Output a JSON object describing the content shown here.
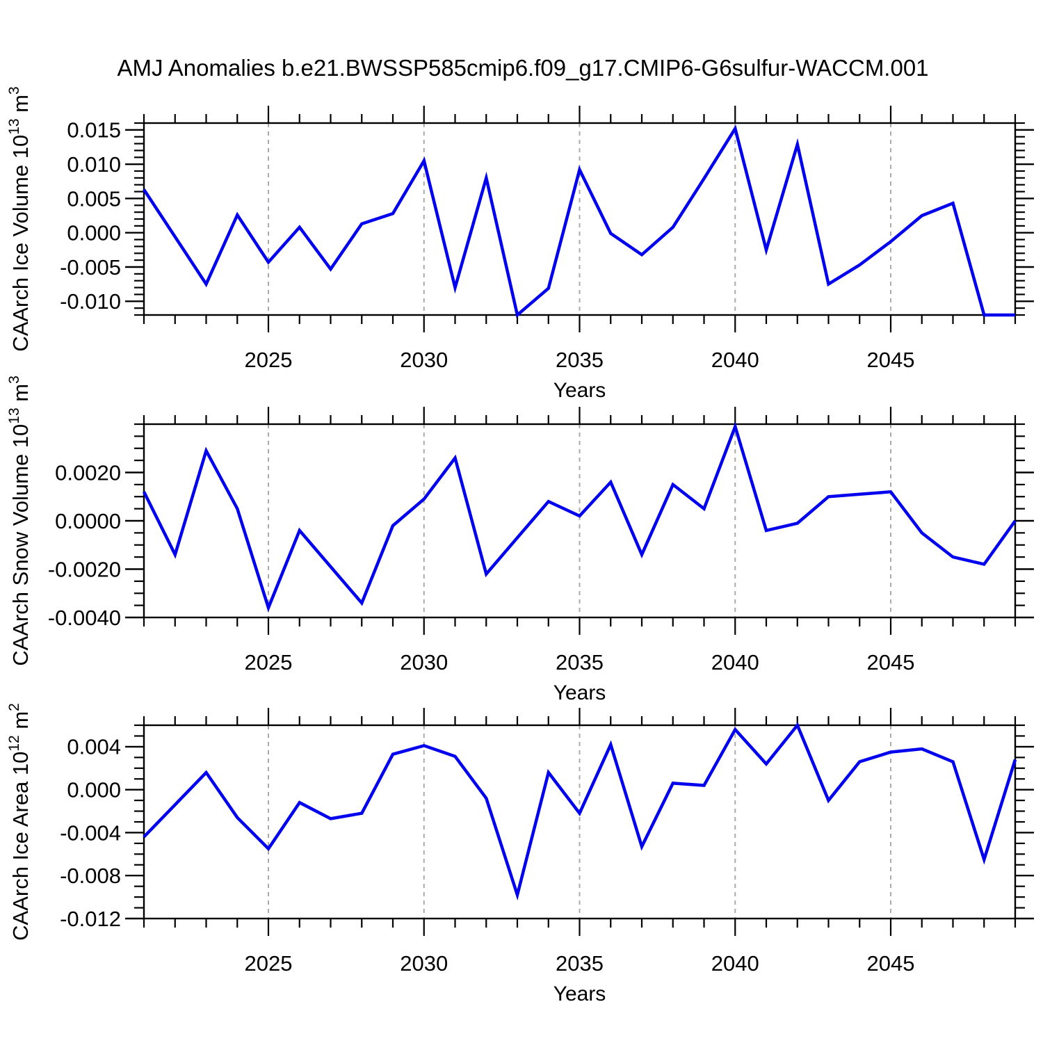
{
  "title": "AMJ Anomalies b.e21.BWSSP585cmip6.f09_g17.CMIP6-G6sulfur-WACCM.001",
  "line_color": "#0000ee",
  "grid_color": "#aaaaaa",
  "axis_color": "#000000",
  "chart_data": [
    {
      "type": "line",
      "title": "AMJ Anomalies b.e21.BWSSP585cmip6.f09_g17.CMIP6-G6sulfur-WACCM.001",
      "ylabel_base": "CAArch Ice Volume 10",
      "ylabel_exp": "13",
      "ylabel_unit": " m",
      "ylabel_unit_exp": "3",
      "ylabel_full": "CAArch Ice Volume 10^13 m^3",
      "xlabel": "Years",
      "x": [
        2021,
        2022,
        2023,
        2024,
        2025,
        2026,
        2027,
        2028,
        2029,
        2030,
        2031,
        2032,
        2033,
        2034,
        2035,
        2036,
        2037,
        2038,
        2039,
        2040,
        2041,
        2042,
        2043,
        2044,
        2045,
        2046,
        2047,
        2048,
        2049
      ],
      "values": [
        0.0063,
        -0.0006,
        -0.0075,
        0.0026,
        -0.0043,
        0.0008,
        -0.0053,
        0.0013,
        0.0028,
        0.0105,
        -0.008,
        0.008,
        -0.0121,
        -0.0081,
        0.0092,
        -0.0001,
        -0.0032,
        0.0008,
        0.0079,
        0.0152,
        -0.0025,
        0.0129,
        -0.0075,
        -0.0047,
        -0.0013,
        0.0025,
        0.0043,
        -0.0122,
        -0.0122
      ],
      "ylim": [
        -0.012,
        0.016
      ],
      "ytick_values": [
        0.015,
        0.01,
        0.005,
        0.0,
        -0.005,
        -0.01
      ],
      "ytick_labels": [
        "0.015",
        "0.010",
        "0.005",
        "0.000",
        "-0.005",
        "-0.010"
      ],
      "y_minor_step": 0.001,
      "xlim": [
        2021,
        2049
      ],
      "xtick_values": [
        2025,
        2030,
        2035,
        2040,
        2045
      ],
      "xtick_labels": [
        "2025",
        "2030",
        "2035",
        "2040",
        "2045"
      ],
      "grid": "vertical dashed gridlines at labeled years"
    },
    {
      "type": "line",
      "title": "",
      "ylabel_base": "CAArch Snow Volume 10",
      "ylabel_exp": "13",
      "ylabel_unit": " m",
      "ylabel_unit_exp": "3",
      "ylabel_full": "CAArch Snow Volume 10^13 m^3",
      "xlabel": "Years",
      "x": [
        2021,
        2022,
        2023,
        2024,
        2025,
        2026,
        2027,
        2028,
        2029,
        2030,
        2031,
        2032,
        2033,
        2034,
        2035,
        2036,
        2037,
        2038,
        2039,
        2040,
        2041,
        2042,
        2043,
        2044,
        2045,
        2046,
        2047,
        2048,
        2049
      ],
      "values": [
        0.0012,
        -0.0014,
        0.0029,
        0.0005,
        -0.0036,
        -0.0004,
        -0.0019,
        -0.0034,
        -0.0002,
        0.0009,
        0.0026,
        -0.0022,
        -0.0007,
        0.0008,
        0.0002,
        0.0016,
        -0.0014,
        0.0015,
        0.0005,
        0.0039,
        -0.0004,
        -0.0001,
        0.001,
        0.0011,
        0.0012,
        -0.0005,
        -0.0015,
        -0.0018,
        0.0
      ],
      "ylim": [
        -0.004,
        0.004
      ],
      "ytick_values": [
        0.002,
        0.0,
        -0.002,
        -0.004
      ],
      "ytick_labels": [
        "0.0020",
        "0.0000",
        "-0.0020",
        "-0.0040"
      ],
      "y_minor_step": 0.0005,
      "xlim": [
        2021,
        2049
      ],
      "xtick_values": [
        2025,
        2030,
        2035,
        2040,
        2045
      ],
      "xtick_labels": [
        "2025",
        "2030",
        "2035",
        "2040",
        "2045"
      ],
      "grid": "vertical dashed gridlines at labeled years"
    },
    {
      "type": "line",
      "title": "",
      "ylabel_base": "CAArch Ice Area 10",
      "ylabel_exp": "12",
      "ylabel_unit": " m",
      "ylabel_unit_exp": "2",
      "ylabel_full": "CAArch Ice Area 10^12 m^2",
      "xlabel": "Years",
      "x": [
        2021,
        2022,
        2023,
        2024,
        2025,
        2026,
        2027,
        2028,
        2029,
        2030,
        2031,
        2032,
        2033,
        2034,
        2035,
        2036,
        2037,
        2038,
        2039,
        2040,
        2041,
        2042,
        2043,
        2044,
        2045,
        2046,
        2047,
        2048,
        2049
      ],
      "values": [
        -0.0044,
        -0.0014,
        0.0016,
        -0.0026,
        -0.0055,
        -0.0012,
        -0.0027,
        -0.0022,
        0.0033,
        0.0041,
        0.0031,
        -0.0008,
        -0.0098,
        0.0016,
        -0.0022,
        0.0042,
        -0.0053,
        0.0006,
        0.0004,
        0.0056,
        0.0024,
        0.006,
        -0.001,
        0.0026,
        0.0035,
        0.0038,
        0.0026,
        -0.0065,
        0.0028
      ],
      "ylim": [
        -0.012,
        0.006
      ],
      "ytick_values": [
        0.004,
        0.0,
        -0.004,
        -0.008,
        -0.012
      ],
      "ytick_labels": [
        "0.004",
        "0.000",
        "-0.004",
        "-0.008",
        "-0.012"
      ],
      "y_minor_step": 0.001,
      "xlim": [
        2021,
        2049
      ],
      "xtick_values": [
        2025,
        2030,
        2035,
        2040,
        2045
      ],
      "xtick_labels": [
        "2025",
        "2030",
        "2035",
        "2040",
        "2045"
      ],
      "grid": "vertical dashed gridlines at labeled years"
    }
  ]
}
